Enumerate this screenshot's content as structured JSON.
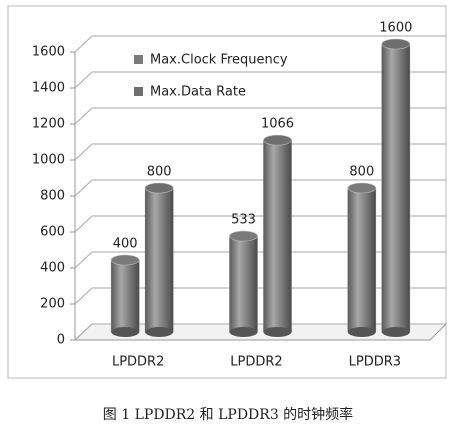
{
  "chart_data": {
    "type": "bar",
    "caption": "图 1 LPDDR2 和 LPDDR3 的时钟频率",
    "categories": [
      "LPDDR2",
      "LPDDR2",
      "LPDDR3"
    ],
    "series": [
      {
        "name": "Max.Clock Frequency",
        "color": "#7a7a7a",
        "values": [
          400,
          533,
          800
        ]
      },
      {
        "name": "Max.Data Rate",
        "color": "#6e6e6e",
        "values": [
          800,
          1066,
          1600
        ]
      }
    ],
    "ylim": [
      0,
      1600
    ],
    "yticks": [
      0,
      200,
      400,
      600,
      800,
      1000,
      1200,
      1400,
      1600
    ],
    "grid": true
  }
}
